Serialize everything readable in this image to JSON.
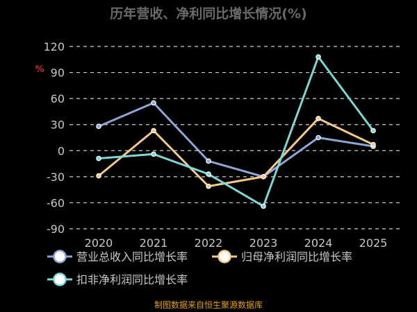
{
  "chart_data": {
    "type": "line",
    "title": "历年营收、净利同比增长情况(%)",
    "unit_label": "%",
    "categories": [
      "2020",
      "2021",
      "2022",
      "2023",
      "2024",
      "2025"
    ],
    "ylim": [
      -90,
      120
    ],
    "yticks": [
      120,
      90,
      60,
      30,
      0,
      -30,
      -60,
      -90
    ],
    "grid": true,
    "legend_position": "bottom",
    "series": [
      {
        "name": "营业总收入同比增长率",
        "color": "#8fa6d9",
        "values": [
          28,
          55,
          -12,
          -30,
          15,
          5
        ]
      },
      {
        "name": "归母净利润同比增长率",
        "color": "#f5c98a",
        "values": [
          -29,
          23,
          -41,
          -30,
          37,
          7
        ]
      },
      {
        "name": "扣非净利润同比增长率",
        "color": "#7fd6d4",
        "values": [
          -9,
          -4,
          -27,
          -64,
          108,
          23
        ]
      }
    ],
    "source": "制图数据来自恒生聚源数据库"
  }
}
